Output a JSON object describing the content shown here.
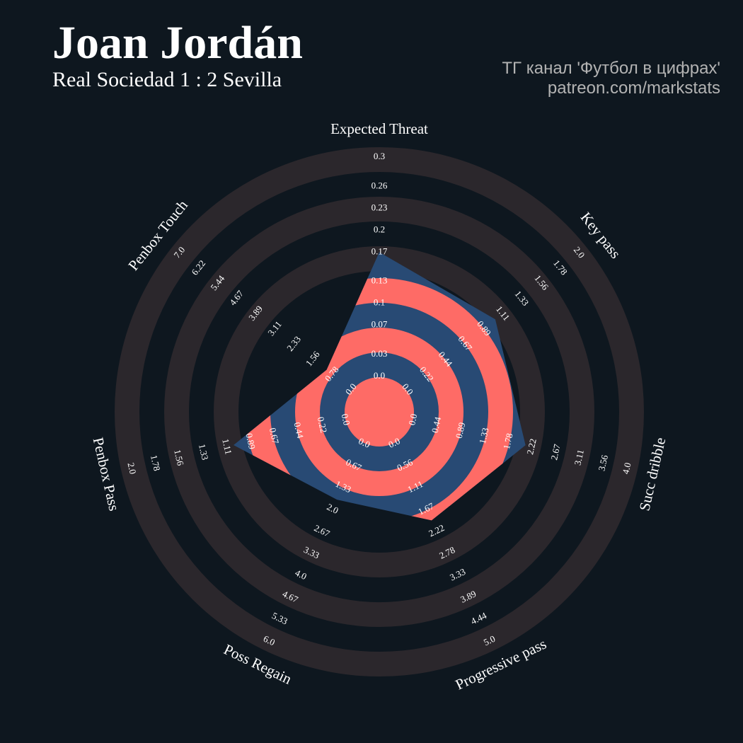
{
  "chart_data": {
    "type": "radar",
    "title": "Joan Jordán",
    "subtitle": "Real Sociedad 1 : 2 Sevilla",
    "credits": [
      "ТГ канал 'Футбол в цифрах'",
      "patreon.com/markstats"
    ],
    "categories": [
      "Expected Threat",
      "Key pass",
      "Succ dribble",
      "Progressive pass",
      "Poss Regain",
      "Penbox Pass",
      "Penbox Touch"
    ],
    "values": [
      0.17,
      1.03,
      2.09,
      1.94,
      1.7,
      1.04,
      1.02
    ],
    "ranges": [
      [
        0,
        0.3
      ],
      [
        0,
        2
      ],
      [
        0,
        4
      ],
      [
        0,
        5
      ],
      [
        0,
        6
      ],
      [
        0,
        2
      ],
      [
        0,
        7
      ]
    ],
    "axis_ticks": [
      [
        {
          "value": 0,
          "label": "0.0"
        },
        0.03,
        0.07,
        0.1,
        0.13,
        0.17,
        0.2,
        0.23,
        0.26,
        0.3
      ],
      [
        {
          "value": 0,
          "label": "0.0"
        },
        0.22,
        0.44,
        0.67,
        0.89,
        1.11,
        1.33,
        1.56,
        1.78,
        {
          "value": 2,
          "label": "2.0"
        }
      ],
      [
        {
          "value": 0,
          "label": "0.0"
        },
        0.44,
        0.89,
        1.33,
        1.78,
        2.22,
        2.67,
        3.11,
        3.56,
        {
          "value": 4,
          "label": "4.0"
        }
      ],
      [
        {
          "value": 0,
          "label": "0.0"
        },
        0.56,
        1.11,
        1.67,
        2.22,
        2.78,
        3.33,
        3.89,
        4.44,
        {
          "value": 5,
          "label": "5.0"
        }
      ],
      [
        {
          "value": 0,
          "label": "0.0"
        },
        0.67,
        1.33,
        {
          "value": 2,
          "label": "2.0"
        },
        2.67,
        3.33,
        {
          "value": 4,
          "label": "4.0"
        },
        4.67,
        5.33,
        {
          "value": 6,
          "label": "6.0"
        }
      ],
      [
        {
          "value": 0,
          "label": "0.0"
        },
        0.22,
        0.44,
        0.67,
        0.89,
        1.11,
        1.33,
        1.56,
        1.78,
        {
          "value": 2,
          "label": "2.0"
        }
      ],
      [
        {
          "value": 0,
          "label": "0.0"
        },
        0.78,
        1.56,
        2.33,
        3.11,
        3.89,
        4.67,
        5.44,
        6.22,
        {
          "value": 7,
          "label": "7.0"
        }
      ]
    ],
    "color": "#284a74",
    "highlight_color": "#fe6b66",
    "ring_color": "#2b272c"
  }
}
